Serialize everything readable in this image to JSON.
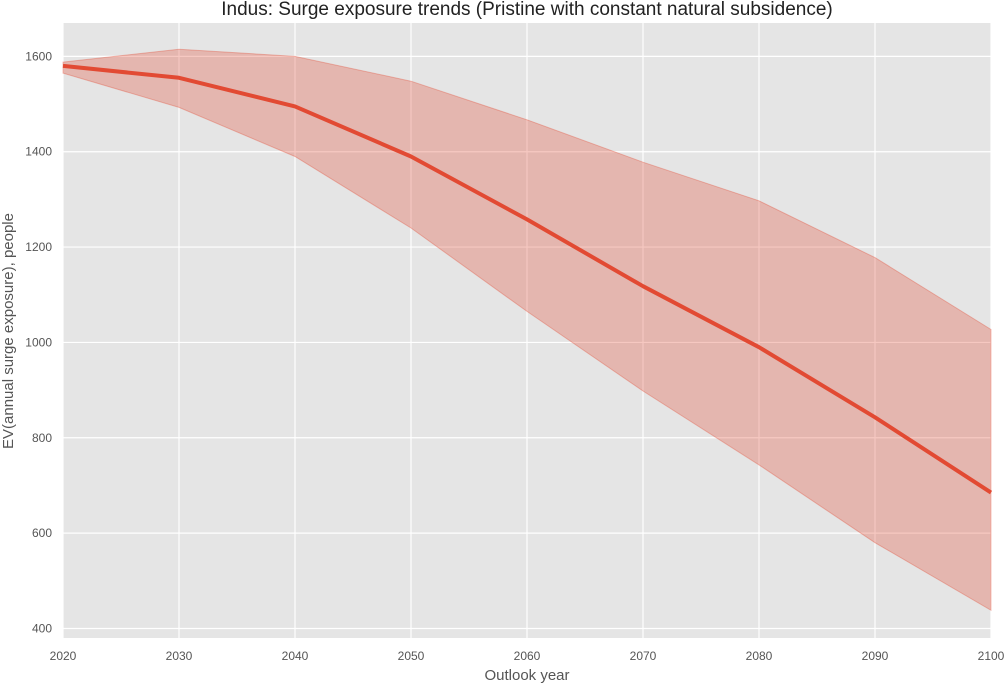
{
  "chart_data": {
    "type": "line",
    "title": "Indus: Surge exposure trends (Pristine with constant natural subsidence)",
    "xlabel": "Outlook year",
    "ylabel": "EV(annual surge exposure), people",
    "xlim": [
      2020,
      2100
    ],
    "ylim": [
      380,
      1670
    ],
    "x_ticks": [
      "2020",
      "2030",
      "2040",
      "2050",
      "2060",
      "2070",
      "2080",
      "2090",
      "2100"
    ],
    "y_ticks": [
      "400",
      "600",
      "800",
      "1000",
      "1200",
      "1400",
      "1600"
    ],
    "grid": true,
    "legend": "none",
    "series": [
      {
        "x": [
          2020,
          2030,
          2040,
          2050,
          2060,
          2070,
          2080,
          2090,
          2100
        ],
        "values": [
          1580,
          1555,
          1495,
          1390,
          1258,
          1118,
          990,
          843,
          685
        ],
        "lower": [
          1565,
          1493,
          1390,
          1240,
          1065,
          898,
          743,
          580,
          438
        ],
        "upper": [
          1588,
          1615,
          1600,
          1548,
          1467,
          1378,
          1297,
          1178,
          1027
        ]
      }
    ],
    "colors": {
      "line": "#E24A33",
      "band": "#E24A33",
      "background": "#E5E5E5",
      "grid": "#FFFFFF"
    }
  }
}
